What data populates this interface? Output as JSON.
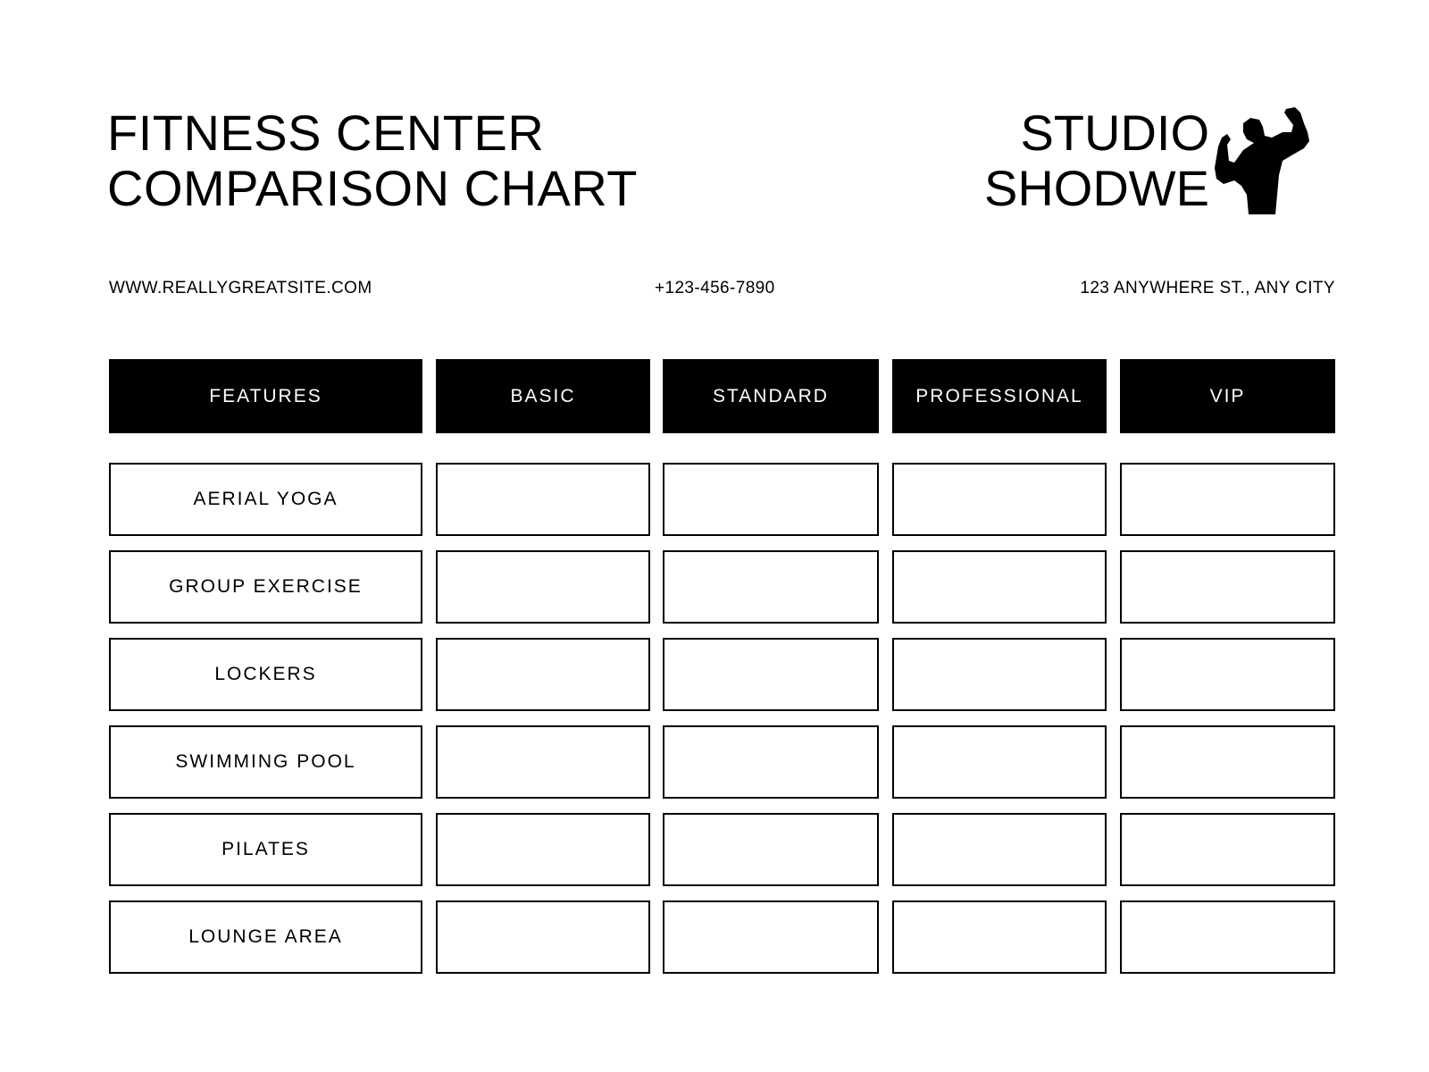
{
  "title": {
    "line1": "FITNESS CENTER",
    "line2": "COMPARISON CHART"
  },
  "brand": {
    "line1": "STUDIO",
    "line2": "SHODWE",
    "logo_icon": "flexing-bodybuilder-icon"
  },
  "contact": {
    "website": "WWW.REALLYGREATSITE.COM",
    "phone": "+123-456-7890",
    "address": "123 ANYWHERE ST., ANY CITY"
  },
  "table": {
    "headers": [
      "FEATURES",
      "BASIC",
      "STANDARD",
      "PROFESSIONAL",
      "VIP"
    ],
    "rows": [
      {
        "feature": "AERIAL YOGA",
        "values": [
          "",
          "",
          "",
          ""
        ]
      },
      {
        "feature": "GROUP EXERCISE",
        "values": [
          "",
          "",
          "",
          ""
        ]
      },
      {
        "feature": "LOCKERS",
        "values": [
          "",
          "",
          "",
          ""
        ]
      },
      {
        "feature": "SWIMMING POOL",
        "values": [
          "",
          "",
          "",
          ""
        ]
      },
      {
        "feature": "PILATES",
        "values": [
          "",
          "",
          "",
          ""
        ]
      },
      {
        "feature": "LOUNGE AREA",
        "values": [
          "",
          "",
          "",
          ""
        ]
      }
    ]
  }
}
